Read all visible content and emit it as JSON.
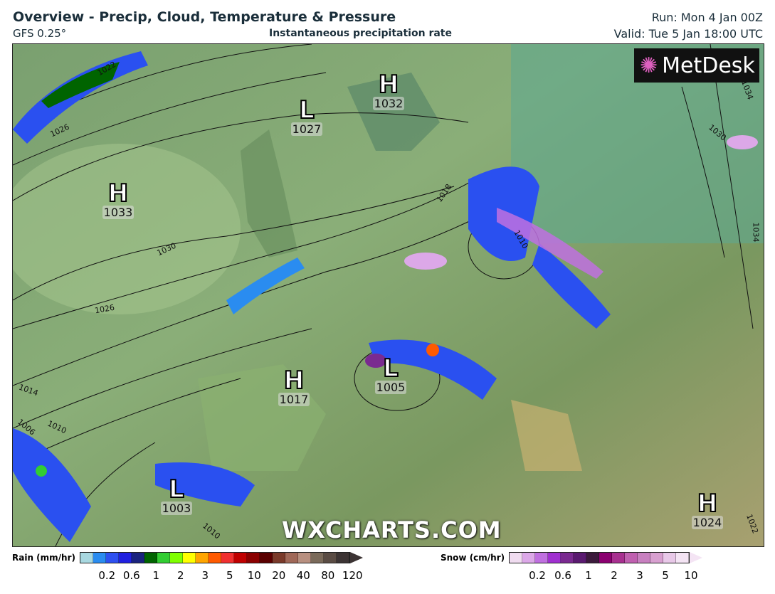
{
  "header": {
    "title": "Overview - Precip, Cloud, Temperature & Pressure",
    "model": "GFS 0.25°",
    "subtitle": "Instantaneous precipitation rate",
    "run": "Run: Mon 4 Jan 00Z",
    "valid": "Valid: Tue 5 Jan 18:00 UTC"
  },
  "map": {
    "logo": "MetDesk",
    "watermark": "WXCHARTS.COM",
    "pressure_centers": [
      {
        "type": "H",
        "value": "1032"
      },
      {
        "type": "L",
        "value": "1027"
      },
      {
        "type": "H",
        "value": "1033"
      },
      {
        "type": "H",
        "value": "1017"
      },
      {
        "type": "L",
        "value": "1005"
      },
      {
        "type": "L",
        "value": "1003"
      },
      {
        "type": "H",
        "value": "1024"
      }
    ],
    "isobar_labels": [
      "1022",
      "1026",
      "1030",
      "1026",
      "1014",
      "1010",
      "1006",
      "1018",
      "1010",
      "1034",
      "1030",
      "1034",
      "1022",
      "1010"
    ]
  },
  "legend": {
    "rain": {
      "label": "Rain (mm/hr)",
      "colors": [
        "#a8d8e0",
        "#2a8cf0",
        "#2e50f0",
        "#2020e0",
        "#1a237e",
        "#006400",
        "#32cd32",
        "#7fff00",
        "#ffff00",
        "#ffa500",
        "#ff5a00",
        "#f03030",
        "#c00000",
        "#8b0000",
        "#5a0000",
        "#7a3a2a",
        "#a06858",
        "#b89080",
        "#7a6a5a",
        "#5a4c44",
        "#3c3434"
      ],
      "ticks": [
        "0.2",
        "0.6",
        "1",
        "2",
        "3",
        "5",
        "10",
        "20",
        "40",
        "80",
        "120"
      ]
    },
    "snow": {
      "label": "Snow (cm/hr)",
      "colors": [
        "#f0dcf0",
        "#dca8e8",
        "#c070e0",
        "#a030d0",
        "#7a2a90",
        "#5a1a70",
        "#3c1a3c",
        "#8b0070",
        "#a83090",
        "#c060b0",
        "#c880c0",
        "#d8a0d0",
        "#e8c8e8",
        "#f4e4f4"
      ],
      "ticks": [
        "0.2",
        "0.6",
        "1",
        "2",
        "3",
        "5",
        "10"
      ]
    }
  }
}
